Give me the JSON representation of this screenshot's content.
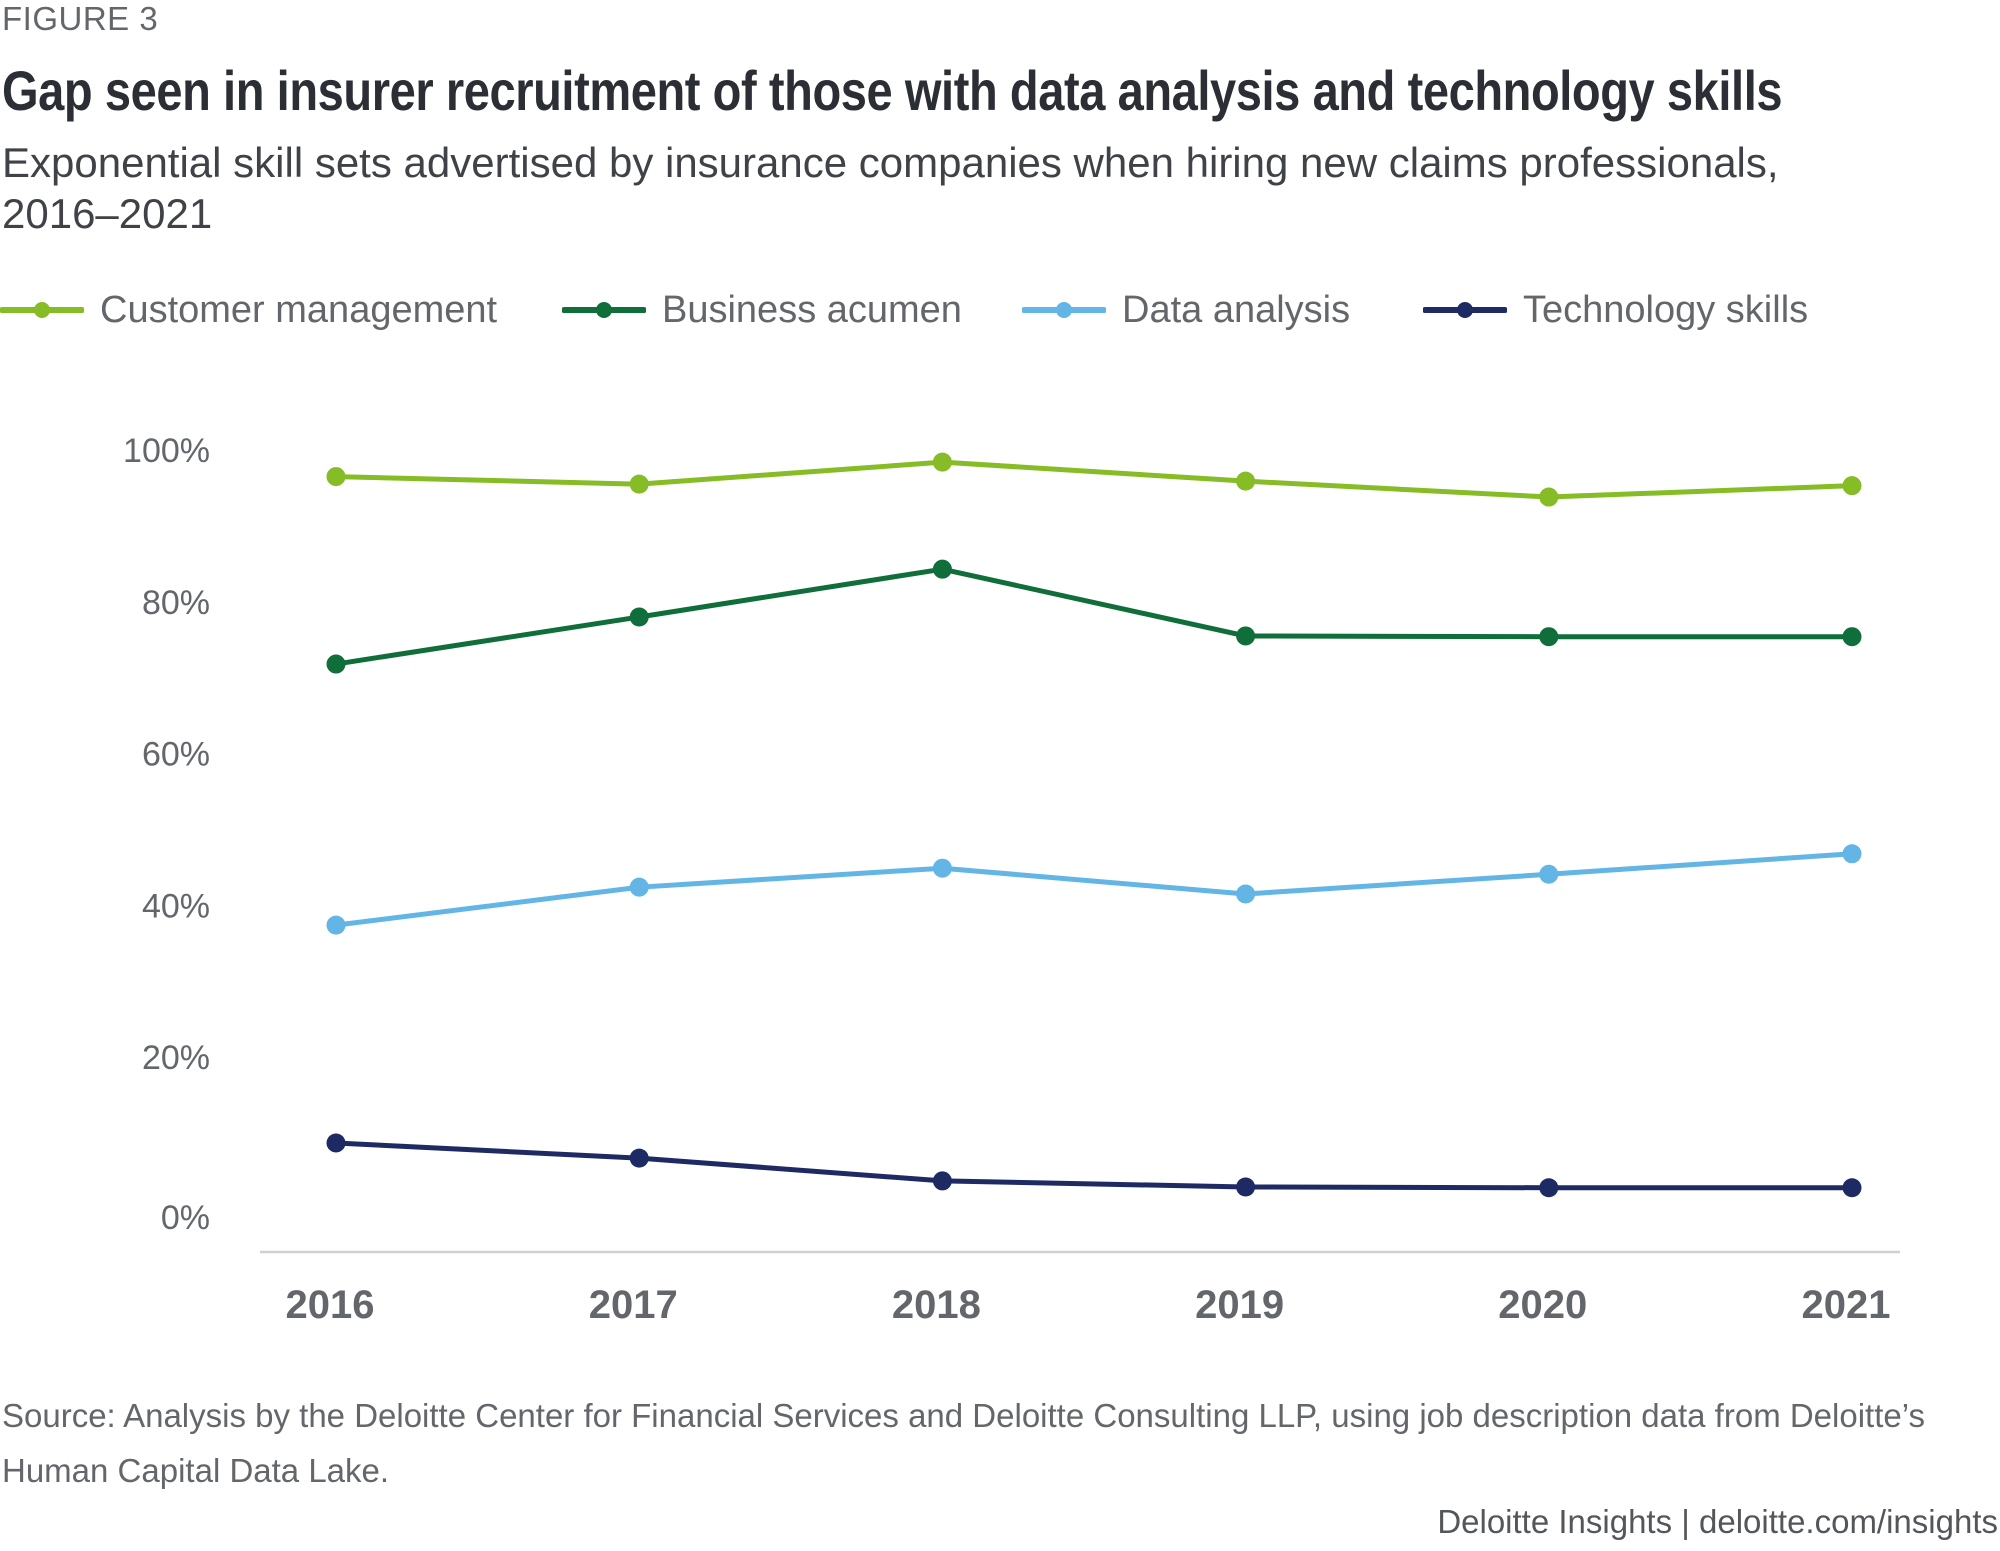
{
  "figure_label": "FIGURE 3",
  "title": "Gap seen in insurer recruitment of those with data analysis and technology skills",
  "subtitle": "Exponential skill sets advertised by insurance companies when hiring new claims professionals, 2016–2021",
  "source": "Source: Analysis by the Deloitte Center for Financial Services and Deloitte Consulting LLP, using job description data from Deloitte’s Human Capital Data Lake.",
  "credit": "Deloitte Insights | deloitte.com/insights",
  "chart_data": {
    "type": "line",
    "title": "Gap seen in insurer recruitment of those with data analysis and technology skills",
    "subtitle": "Exponential skill sets advertised by insurance companies when hiring new claims professionals, 2016–2021",
    "xlabel": "",
    "ylabel": "",
    "x": [
      "2016",
      "2017",
      "2018",
      "2019",
      "2020",
      "2021"
    ],
    "ylim": [
      0,
      100
    ],
    "yticks": [
      0,
      20,
      40,
      60,
      80,
      100
    ],
    "ytick_labels": [
      "0%",
      "20%",
      "40%",
      "60%",
      "80%",
      "100%"
    ],
    "grid": false,
    "legend_position": "top",
    "series": [
      {
        "name": "Customer management",
        "color": "#86bc25",
        "values": [
          96.5,
          95.5,
          98.4,
          95.9,
          93.8,
          95.3
        ]
      },
      {
        "name": "Business acumen",
        "color": "#0f6e3a",
        "values": [
          71.8,
          78.0,
          84.3,
          75.5,
          75.4,
          75.4
        ]
      },
      {
        "name": "Data analysis",
        "color": "#62b5e5",
        "values": [
          37.4,
          42.4,
          44.9,
          41.5,
          44.1,
          46.8
        ]
      },
      {
        "name": "Technology skills",
        "color": "#1e2a63",
        "values": [
          8.7,
          6.7,
          3.7,
          2.9,
          2.8,
          2.8
        ]
      }
    ]
  }
}
